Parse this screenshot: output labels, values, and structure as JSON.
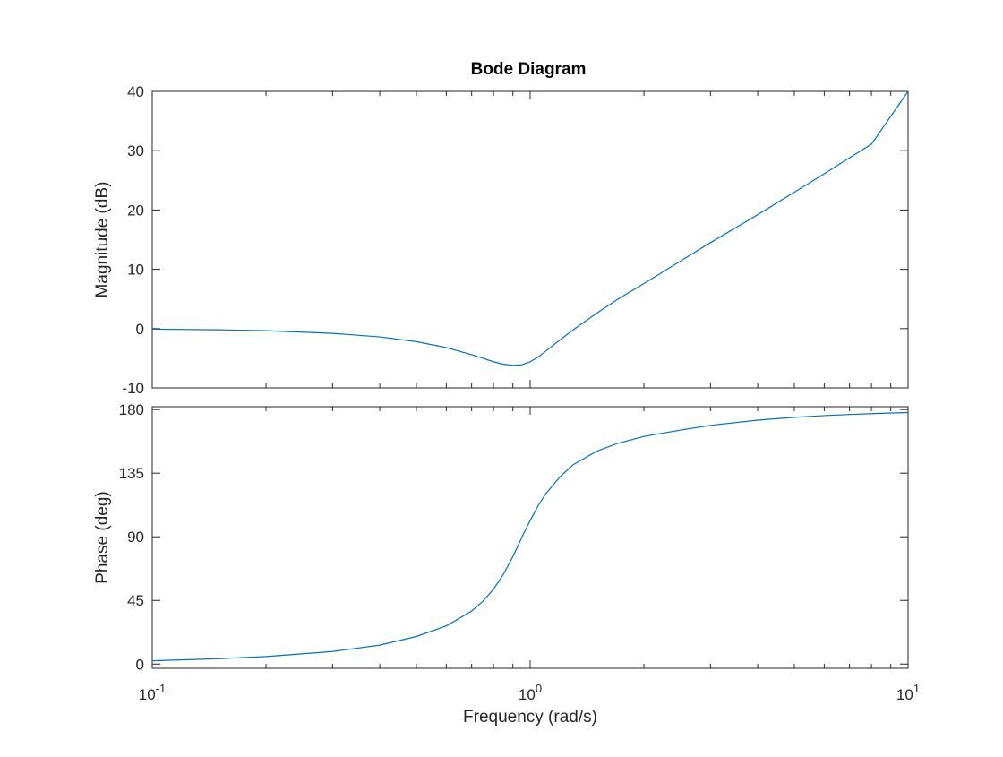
{
  "chart_data": {
    "type": "line",
    "title": "Bode Diagram",
    "xlabel": "Frequency  (rad/s)",
    "xscale": "log",
    "xlim": [
      0.1,
      10
    ],
    "x_tick_labels": [
      {
        "base": "10",
        "exp": "-1"
      },
      {
        "base": "10",
        "exp": "0"
      },
      {
        "base": "10",
        "exp": "1"
      }
    ],
    "grid": false,
    "line_color": "#0072BD",
    "x": [
      0.1,
      0.15,
      0.2,
      0.3,
      0.4,
      0.5,
      0.6,
      0.7,
      0.75,
      0.8,
      0.85,
      0.9,
      0.95,
      1.0,
      1.05,
      1.1,
      1.2,
      1.3,
      1.5,
      1.7,
      2.0,
      2.5,
      3.0,
      4.0,
      5.0,
      6.0,
      7.0,
      8.0,
      10.0
    ],
    "panels": [
      {
        "name": "magnitude",
        "ylabel": "Magnitude (dB)",
        "ylim": [
          -10,
          40
        ],
        "yticks": [
          -10,
          0,
          10,
          20,
          30,
          40
        ],
        "ytick_labels": [
          "-10",
          "0",
          "10",
          "20",
          "30",
          "40"
        ],
        "y": [
          -0.1,
          -0.2,
          -0.35,
          -0.8,
          -1.4,
          -2.2,
          -3.2,
          -4.4,
          -5.0,
          -5.6,
          -6.0,
          -6.2,
          -6.1,
          -5.6,
          -4.8,
          -3.8,
          -1.9,
          -0.2,
          2.6,
          4.9,
          7.6,
          11.4,
          14.5,
          19.2,
          23.0,
          26.1,
          28.8,
          31.1,
          40.0
        ]
      },
      {
        "name": "phase",
        "ylabel": "Phase (deg)",
        "ylim": [
          -3,
          182
        ],
        "yticks": [
          0,
          45,
          90,
          135,
          180
        ],
        "ytick_labels": [
          "0",
          "45",
          "90",
          "135",
          "180"
        ],
        "y": [
          2.3,
          3.8,
          5.3,
          8.9,
          13.4,
          19.5,
          27.0,
          37.5,
          44.5,
          53.0,
          63.5,
          76.0,
          89.5,
          101.5,
          112.0,
          120.5,
          132.5,
          141.0,
          150.5,
          156.0,
          161.0,
          165.5,
          168.8,
          172.5,
          174.5,
          175.7,
          176.5,
          177.1,
          177.9
        ]
      }
    ]
  }
}
